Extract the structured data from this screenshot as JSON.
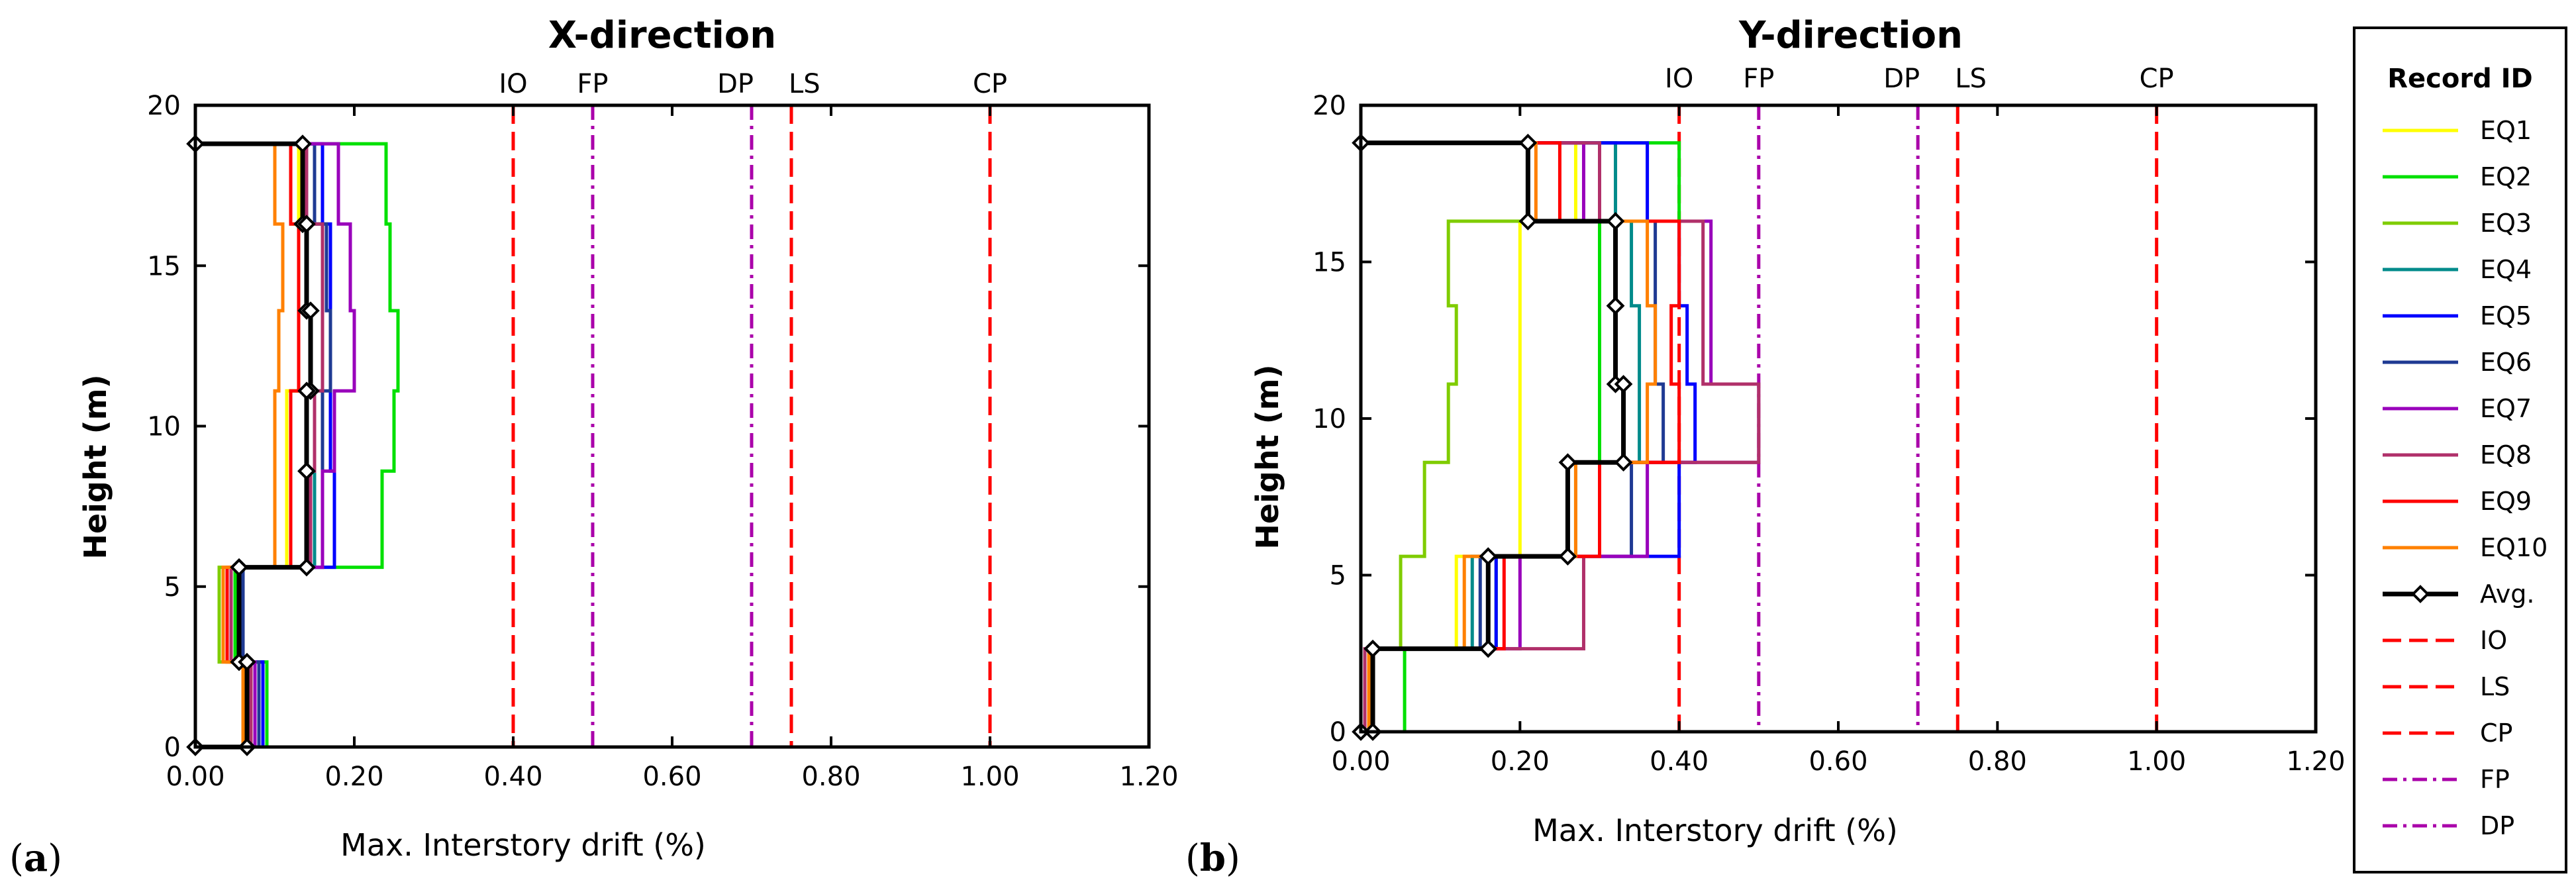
{
  "chart_data": [
    {
      "type": "line",
      "title": "X-direction",
      "panel_label": "a",
      "xlabel": "Max. Interstory drift (%)",
      "ylabel": "Height (m)",
      "xlim": [
        0,
        1.2
      ],
      "ylim": [
        0,
        20
      ],
      "xticks": [
        "0.00",
        "0.20",
        "0.40",
        "0.60",
        "0.80",
        "1.00",
        "1.20"
      ],
      "yticks": [
        "0",
        "5",
        "10",
        "15",
        "20"
      ],
      "floor_heights": [
        0,
        2.65,
        5.6,
        8.6,
        11.1,
        13.6,
        16.3,
        18.8
      ],
      "series": [
        {
          "name": "EQ1",
          "color": "#ffff00",
          "drifts": [
            0.085,
            0.045,
            0.115,
            0.115,
            0.13,
            0.14,
            0.13
          ]
        },
        {
          "name": "EQ2",
          "color": "#00e000",
          "drifts": [
            0.09,
            0.05,
            0.235,
            0.25,
            0.255,
            0.245,
            0.24
          ]
        },
        {
          "name": "EQ3",
          "color": "#7fcc00",
          "drifts": [
            0.08,
            0.03,
            0.12,
            0.12,
            0.13,
            0.13,
            0.12
          ]
        },
        {
          "name": "EQ4",
          "color": "#008b8b",
          "drifts": [
            0.085,
            0.06,
            0.15,
            0.15,
            0.16,
            0.16,
            0.15
          ]
        },
        {
          "name": "EQ5",
          "color": "#0000ff",
          "drifts": [
            0.085,
            0.06,
            0.175,
            0.17,
            0.17,
            0.17,
            0.16
          ]
        },
        {
          "name": "EQ6",
          "color": "#1f3a93",
          "drifts": [
            0.08,
            0.06,
            0.16,
            0.16,
            0.17,
            0.165,
            0.15
          ]
        },
        {
          "name": "EQ7",
          "color": "#9900bb",
          "drifts": [
            0.075,
            0.055,
            0.16,
            0.175,
            0.2,
            0.195,
            0.18
          ]
        },
        {
          "name": "EQ8",
          "color": "#b0306a",
          "drifts": [
            0.07,
            0.045,
            0.145,
            0.15,
            0.16,
            0.16,
            0.14
          ]
        },
        {
          "name": "EQ9",
          "color": "#ff0000",
          "drifts": [
            0.065,
            0.04,
            0.12,
            0.12,
            0.13,
            0.13,
            0.12
          ]
        },
        {
          "name": "EQ10",
          "color": "#ff8000",
          "drifts": [
            0.06,
            0.035,
            0.1,
            0.1,
            0.105,
            0.11,
            0.1
          ]
        }
      ],
      "average": {
        "name": "Avg.",
        "color": "#000000",
        "drifts": [
          0.065,
          0.055,
          0.14,
          0.14,
          0.145,
          0.14,
          0.135
        ]
      },
      "limits": [
        {
          "name": "IO",
          "value": 0.4,
          "color": "#ff0000",
          "style": "dash"
        },
        {
          "name": "FP",
          "value": 0.5,
          "color": "#aa00aa",
          "style": "dashdot"
        },
        {
          "name": "DP",
          "value": 0.7,
          "color": "#aa00aa",
          "style": "dashdot"
        },
        {
          "name": "LS",
          "value": 0.75,
          "color": "#ff0000",
          "style": "dash"
        },
        {
          "name": "CP",
          "value": 1.0,
          "color": "#ff0000",
          "style": "dash"
        }
      ]
    },
    {
      "type": "line",
      "title": "Y-direction",
      "panel_label": "b",
      "xlabel": "Max. Interstory drift (%)",
      "ylabel": "Height (m)",
      "xlim": [
        0,
        1.2
      ],
      "ylim": [
        0,
        20
      ],
      "xticks": [
        "0.00",
        "0.20",
        "0.40",
        "0.60",
        "0.80",
        "1.00",
        "1.20"
      ],
      "yticks": [
        "0",
        "5",
        "10",
        "15",
        "20"
      ],
      "floor_heights": [
        0,
        2.65,
        5.6,
        8.6,
        11.1,
        13.6,
        16.3,
        18.8
      ],
      "series": [
        {
          "name": "EQ1",
          "color": "#ffff00",
          "drifts": [
            0.01,
            0.12,
            0.2,
            0.2,
            0.2,
            0.2,
            0.27
          ]
        },
        {
          "name": "EQ2",
          "color": "#00e000",
          "drifts": [
            0.055,
            0.17,
            0.27,
            0.3,
            0.3,
            0.3,
            0.4
          ]
        },
        {
          "name": "EQ3",
          "color": "#7fcc00",
          "drifts": [
            0.01,
            0.05,
            0.08,
            0.11,
            0.12,
            0.11,
            0.21
          ]
        },
        {
          "name": "EQ4",
          "color": "#008b8b",
          "drifts": [
            0.015,
            0.14,
            0.3,
            0.35,
            0.35,
            0.34,
            0.32
          ]
        },
        {
          "name": "EQ5",
          "color": "#0000ff",
          "drifts": [
            0.015,
            0.17,
            0.4,
            0.42,
            0.41,
            0.4,
            0.36
          ]
        },
        {
          "name": "EQ6",
          "color": "#1f3a93",
          "drifts": [
            0.01,
            0.15,
            0.34,
            0.38,
            0.37,
            0.37,
            0.3
          ]
        },
        {
          "name": "EQ7",
          "color": "#9900bb",
          "drifts": [
            0.01,
            0.2,
            0.36,
            0.5,
            0.44,
            0.44,
            0.28
          ]
        },
        {
          "name": "EQ8",
          "color": "#b0306a",
          "drifts": [
            0.005,
            0.28,
            0.26,
            0.5,
            0.43,
            0.43,
            0.3
          ]
        },
        {
          "name": "EQ9",
          "color": "#ff0000",
          "drifts": [
            0.01,
            0.18,
            0.3,
            0.4,
            0.39,
            0.4,
            0.25
          ]
        },
        {
          "name": "EQ10",
          "color": "#ff8000",
          "drifts": [
            0.01,
            0.13,
            0.27,
            0.36,
            0.37,
            0.36,
            0.22
          ]
        }
      ],
      "average": {
        "name": "Avg.",
        "color": "#000000",
        "drifts": [
          0.015,
          0.16,
          0.26,
          0.33,
          0.32,
          0.32,
          0.21
        ]
      },
      "limits": [
        {
          "name": "IO",
          "value": 0.4,
          "color": "#ff0000",
          "style": "dash"
        },
        {
          "name": "FP",
          "value": 0.5,
          "color": "#aa00aa",
          "style": "dashdot"
        },
        {
          "name": "DP",
          "value": 0.7,
          "color": "#aa00aa",
          "style": "dashdot"
        },
        {
          "name": "LS",
          "value": 0.75,
          "color": "#ff0000",
          "style": "dash"
        },
        {
          "name": "CP",
          "value": 1.0,
          "color": "#ff0000",
          "style": "dash"
        }
      ]
    }
  ],
  "legend": {
    "title": "Record ID",
    "placement": "right",
    "entries": [
      {
        "label": "EQ1",
        "color": "#ffff00",
        "style": "solid"
      },
      {
        "label": "EQ2",
        "color": "#00e000",
        "style": "solid"
      },
      {
        "label": "EQ3",
        "color": "#7fcc00",
        "style": "solid"
      },
      {
        "label": "EQ4",
        "color": "#008b8b",
        "style": "solid"
      },
      {
        "label": "EQ5",
        "color": "#0000ff",
        "style": "solid"
      },
      {
        "label": "EQ6",
        "color": "#1f3a93",
        "style": "solid"
      },
      {
        "label": "EQ7",
        "color": "#9900bb",
        "style": "solid"
      },
      {
        "label": "EQ8",
        "color": "#b0306a",
        "style": "solid"
      },
      {
        "label": "EQ9",
        "color": "#ff0000",
        "style": "solid"
      },
      {
        "label": "EQ10",
        "color": "#ff8000",
        "style": "solid"
      },
      {
        "label": "Avg.",
        "color": "#000000",
        "style": "avg"
      },
      {
        "label": "IO",
        "color": "#ff0000",
        "style": "dash"
      },
      {
        "label": "LS",
        "color": "#ff0000",
        "style": "dash"
      },
      {
        "label": "CP",
        "color": "#ff0000",
        "style": "dash"
      },
      {
        "label": "FP",
        "color": "#aa00aa",
        "style": "dashdot"
      },
      {
        "label": "DP",
        "color": "#aa00aa",
        "style": "dashdot"
      }
    ]
  }
}
